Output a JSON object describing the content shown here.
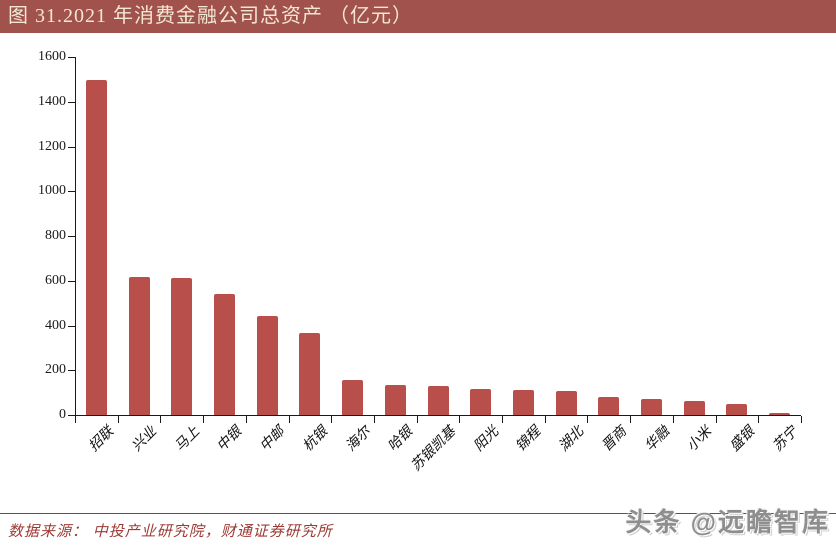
{
  "title_bar": {
    "text": "图 31.2021 年消费金融公司总资产 （亿元）",
    "bg_color": "#a1524c",
    "text_color": "#f2e7d4"
  },
  "chart_data": {
    "type": "bar",
    "title": "2021 年消费金融公司总资产（亿元）",
    "categories": [
      "招联",
      "兴业",
      "马上",
      "中银",
      "中邮",
      "杭银",
      "海尔",
      "哈银",
      "苏银凯基",
      "阳光",
      "锦程",
      "湖北",
      "晋商",
      "华融",
      "小米",
      "盛银",
      "苏宁"
    ],
    "values": [
      1497,
      618,
      611,
      543,
      444,
      366,
      156,
      135,
      130,
      118,
      112,
      109,
      79,
      72,
      64,
      50,
      11
    ],
    "xlabel": "",
    "ylabel": "",
    "ylim": [
      0,
      1600
    ],
    "ytick_step": 200,
    "yticks": [
      0,
      200,
      400,
      600,
      800,
      1000,
      1200,
      1400,
      1600
    ],
    "grid": false,
    "legend": "none",
    "bar_color": "#b94f4a"
  },
  "footer": {
    "source_label": "数据来源：  中投产业研究院，财通证券研究所",
    "watermark": "头条 @远瞻智库"
  }
}
